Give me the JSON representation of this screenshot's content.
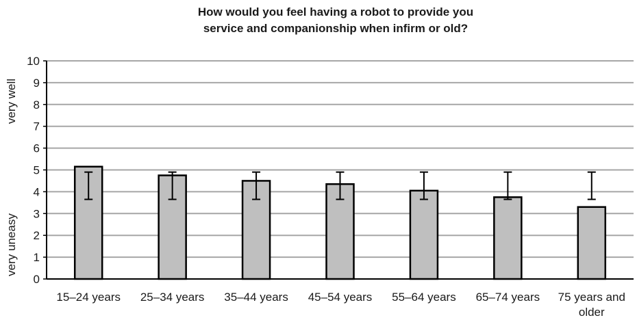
{
  "chart_data": {
    "type": "bar",
    "title_lines": [
      "How would you feel having a robot to provide you",
      "service and companionship when infirm or old?"
    ],
    "ylabel_top": "very well",
    "ylabel_bottom": "very uneasy",
    "categories": [
      "15–24 years",
      "25–34 years",
      "35–44 years",
      "45–54 years",
      "55–64 years",
      "65–74 years",
      "75 years and older"
    ],
    "category_lines": [
      [
        "15–24 years"
      ],
      [
        "25–34 years"
      ],
      [
        "35–44 years"
      ],
      [
        "45–54 years"
      ],
      [
        "55–64 years"
      ],
      [
        "65–74 years"
      ],
      [
        "75 years and",
        "older"
      ]
    ],
    "values": [
      5.15,
      4.75,
      4.5,
      4.35,
      4.05,
      3.75,
      3.3
    ],
    "error_low": [
      3.65,
      3.65,
      3.65,
      3.65,
      3.65,
      3.65,
      3.65
    ],
    "error_high": [
      4.9,
      4.9,
      4.9,
      4.9,
      4.9,
      4.9,
      4.9
    ],
    "ylim": [
      0,
      10
    ],
    "yticks": [
      0,
      1,
      2,
      3,
      4,
      5,
      6,
      7,
      8,
      9,
      10
    ],
    "grid": true,
    "legend": "none",
    "bar_color": "#bfbfbf",
    "bar_edge_color": "#000000",
    "grid_color": "#a6a6a6"
  }
}
